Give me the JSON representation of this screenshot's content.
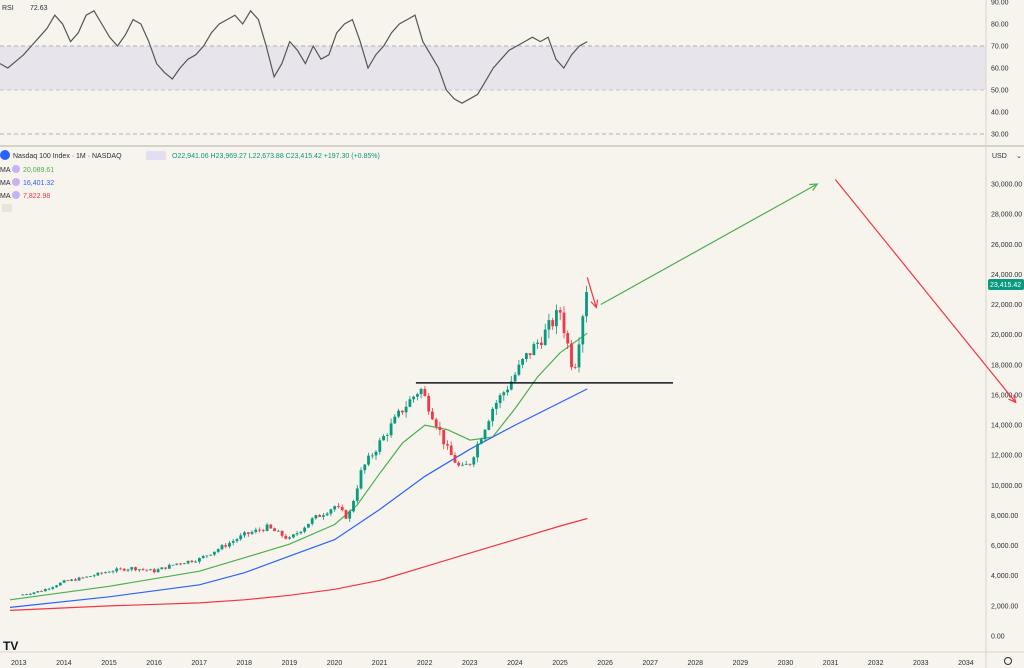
{
  "rsi": {
    "label": "RSI",
    "value": "72.63",
    "y_ticks": [
      "90.00",
      "80.00",
      "70.00",
      "60.00",
      "50.00",
      "40.00",
      "30.00"
    ],
    "values": [
      62,
      60,
      63,
      66,
      70,
      74,
      78,
      84,
      80,
      72,
      76,
      84,
      86,
      80,
      74,
      70,
      75,
      82,
      80,
      72,
      62,
      58,
      55,
      60,
      64,
      66,
      70,
      76,
      80,
      82,
      84,
      80,
      86,
      82,
      70,
      56,
      62,
      72,
      68,
      62,
      70,
      64,
      66,
      76,
      80,
      82,
      72,
      60,
      66,
      70,
      76,
      80,
      82,
      84,
      72,
      66,
      60,
      50,
      46,
      44,
      46,
      48,
      54,
      60,
      64,
      68,
      70,
      72,
      74,
      72,
      74,
      64,
      60,
      66,
      70,
      72
    ]
  },
  "price": {
    "symbol_label": "Nasdaq 100 Index · 1M · NASDAQ",
    "ohlc": "O22,941.06  H23,969.27  L22,673.88  C23,415.42  +197.30 (+0.85%)",
    "ma_labels": [
      {
        "name": "MA",
        "value": "20,089.61",
        "color": "#4caf50"
      },
      {
        "name": "MA",
        "value": "16,401.32",
        "color": "#2962ff"
      },
      {
        "name": "MA",
        "value": "7,822.98",
        "color": "#f23645"
      }
    ],
    "currency": "USD",
    "last_price_label": "23,415.42",
    "y_ticks": [
      "30,000.00",
      "28,000.00",
      "26,000.00",
      "24,000.00",
      "22,000.00",
      "20,000.00",
      "18,000.00",
      "16,000.00",
      "14,000.00",
      "12,000.00",
      "10,000.00",
      "8,000.00",
      "6,000.00",
      "4,000.00",
      "2,000.00",
      "0.00"
    ],
    "x_ticks": [
      "2013",
      "2014",
      "2015",
      "2016",
      "2017",
      "2018",
      "2019",
      "2020",
      "2021",
      "2022",
      "2023",
      "2024",
      "2025",
      "2026",
      "2027",
      "2028",
      "2029",
      "2030",
      "2031",
      "2032",
      "2033",
      "2034"
    ]
  },
  "chart_data": {
    "type": "line",
    "title": "Nasdaq 100 Index · 1M · NASDAQ",
    "xlabel": "",
    "ylabel": "",
    "ylim": [
      0,
      30000
    ],
    "x_range": [
      "2013",
      "2034"
    ],
    "close_series": {
      "x": [
        2013,
        2013.5,
        2014,
        2014.5,
        2015,
        2015.5,
        2016,
        2016.5,
        2017,
        2017.5,
        2018,
        2018.5,
        2019,
        2019.5,
        2020,
        2020.3,
        2020.6,
        2021,
        2021.5,
        2021.9,
        2022.2,
        2022.5,
        2022.8,
        2023,
        2023.5,
        2023.9,
        2024.2,
        2024.6,
        2025,
        2025.3,
        2025.6
      ],
      "y": [
        2700,
        3000,
        3600,
        3900,
        4300,
        4500,
        4300,
        4800,
        5100,
        5900,
        6700,
        7200,
        6400,
        7700,
        8600,
        7800,
        11000,
        12800,
        15000,
        16400,
        14500,
        12300,
        11000,
        11500,
        15100,
        16800,
        18300,
        19800,
        21500,
        17500,
        23400
      ]
    },
    "ma_series": [
      {
        "name": "MA",
        "value_label": "20,089.61",
        "color": "#4caf50",
        "x": [
          2012.8,
          2015,
          2017,
          2018,
          2019,
          2020,
          2020.5,
          2021,
          2021.5,
          2022,
          2022.5,
          2023,
          2023.5,
          2024,
          2024.5,
          2025,
          2025.6
        ],
        "y": [
          2400,
          3300,
          4300,
          5200,
          6100,
          7400,
          8700,
          10800,
          12800,
          14000,
          13700,
          13000,
          13200,
          15100,
          17200,
          18800,
          20100
        ]
      },
      {
        "name": "MA",
        "value_label": "16,401.32",
        "color": "#2962ff",
        "x": [
          2012.8,
          2015,
          2017,
          2018,
          2019,
          2020,
          2021,
          2022,
          2023,
          2024,
          2025,
          2025.6
        ],
        "y": [
          1900,
          2600,
          3400,
          4200,
          5300,
          6400,
          8400,
          10600,
          12400,
          14000,
          15500,
          16400
        ]
      },
      {
        "name": "MA",
        "value_label": "7,822.98",
        "color": "#f23645",
        "x": [
          2012.8,
          2015,
          2017,
          2018,
          2019,
          2020,
          2021,
          2022,
          2023,
          2024,
          2025,
          2025.6
        ],
        "y": [
          1700,
          2000,
          2200,
          2400,
          2700,
          3100,
          3700,
          4600,
          5500,
          6400,
          7300,
          7800
        ]
      }
    ],
    "resistance_line": {
      "x": [
        2021.8,
        2027.5
      ],
      "y": [
        16800,
        16800
      ]
    },
    "projection_up": {
      "x": [
        2025.9,
        2030.7
      ],
      "y": [
        22000,
        30000
      ],
      "color": "#4caf50"
    },
    "projection_down": {
      "x": [
        2031.1,
        2035.1
      ],
      "y": [
        30300,
        15500
      ],
      "color": "#f23645"
    },
    "small_arrow": {
      "x": [
        2025.6,
        2025.8
      ],
      "y": [
        23800,
        21800
      ],
      "color": "#f23645"
    }
  }
}
